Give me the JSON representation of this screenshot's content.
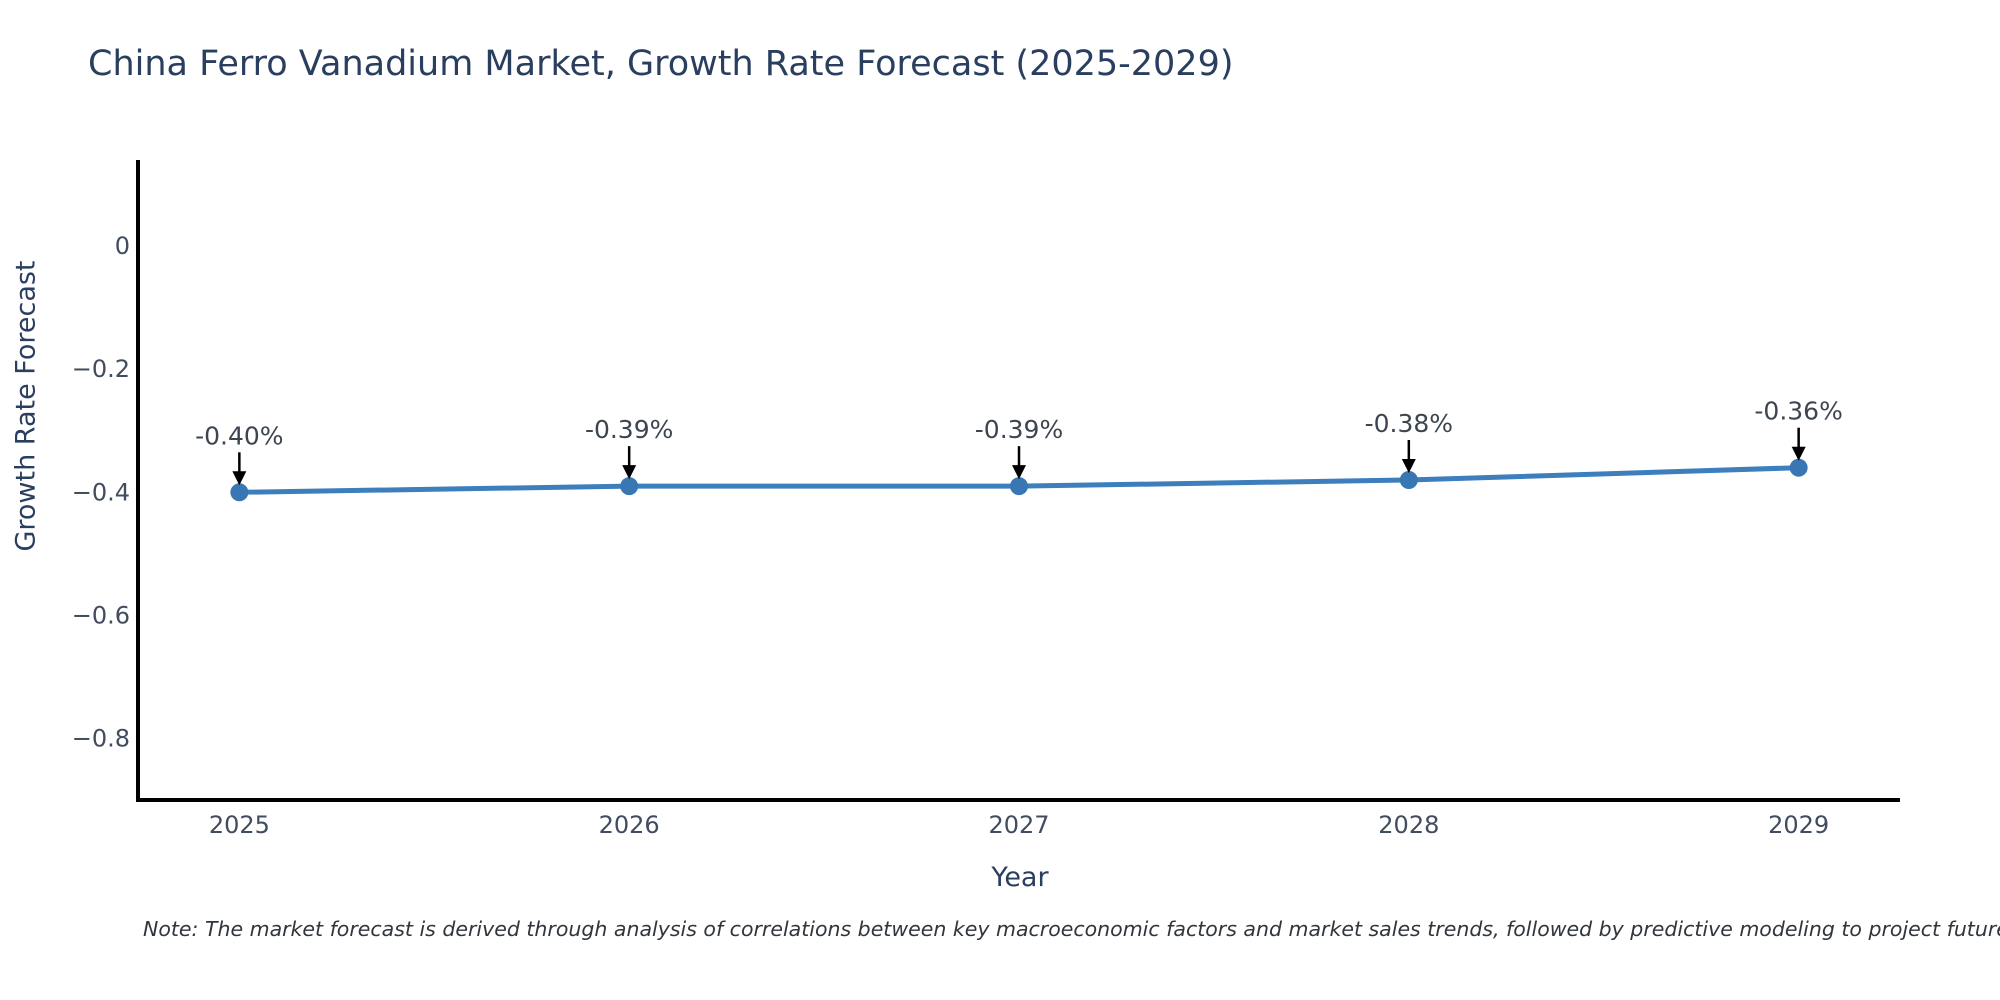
{
  "title": "China Ferro Vanadium Market, Growth Rate Forecast (2025-2029)",
  "note": "Note: The market forecast is derived through analysis of correlations between key macroeconomic factors and market sales trends, followed by predictive modeling to project future sa",
  "chart_data": {
    "type": "line",
    "title": "China Ferro Vanadium Market, Growth Rate Forecast (2025-2029)",
    "xlabel": "Year",
    "ylabel": "Growth Rate Forecast",
    "x": [
      2025,
      2026,
      2027,
      2028,
      2029
    ],
    "values": [
      -0.4,
      -0.39,
      -0.39,
      -0.38,
      -0.36
    ],
    "point_labels": [
      "-0.40%",
      "-0.39%",
      "-0.39%",
      "-0.38%",
      "-0.36%"
    ],
    "xtick_labels": [
      "2025",
      "2026",
      "2027",
      "2028",
      "2029"
    ],
    "yticks": [
      0,
      -0.2,
      -0.4,
      -0.6,
      -0.8
    ],
    "ytick_labels": [
      "0",
      "−0.2",
      "−0.4",
      "−0.6",
      "−0.8"
    ],
    "xlim": [
      2024.74,
      2029.26
    ],
    "ylim": [
      -0.9,
      0.14
    ],
    "grid": false,
    "legend": null,
    "colors": {
      "line": "#3d7ebc",
      "marker": "#3876b4",
      "axis": "#000000",
      "tick_label": "#414c5e",
      "annotation_text": "#3d4650",
      "annotation_arrow": "#000000",
      "title_text": "#2a3f5f"
    }
  }
}
